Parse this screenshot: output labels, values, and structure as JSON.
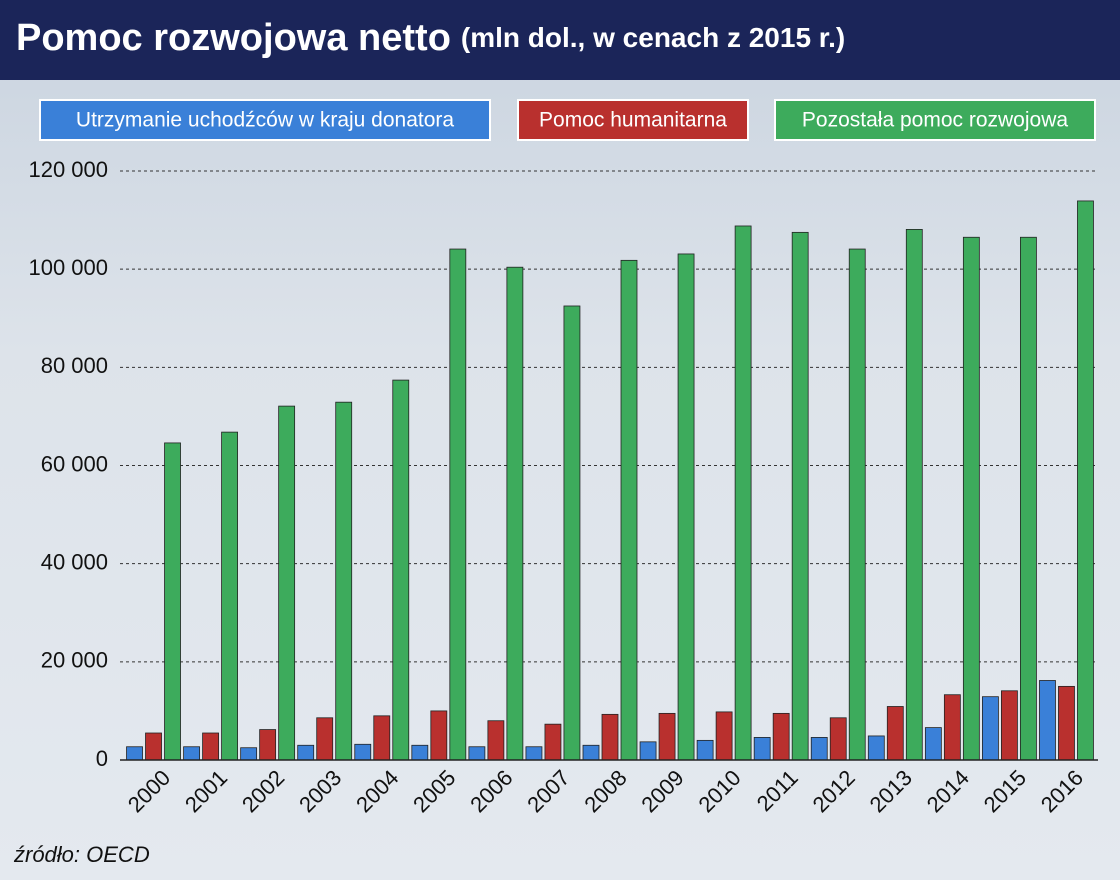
{
  "chart_data": {
    "type": "bar",
    "title": "Pomoc rozwojowa netto",
    "subtitle": "(mln dol., w cenach z 2015 r.)",
    "source": "źródło: OECD",
    "categories": [
      "2000",
      "2001",
      "2002",
      "2003",
      "2004",
      "2005",
      "2006",
      "2007",
      "2008",
      "2009",
      "2010",
      "2011",
      "2012",
      "2013",
      "2014",
      "2015",
      "2016"
    ],
    "series": [
      {
        "name": "Utrzymanie uchodźców w kraju donatora",
        "color": "#3a80d8",
        "values": [
          2700,
          2700,
          2500,
          3000,
          3200,
          3000,
          2700,
          2700,
          3000,
          3700,
          4000,
          4600,
          4600,
          4900,
          6600,
          12900,
          16200
        ]
      },
      {
        "name": "Pomoc humanitarna",
        "color": "#b9302e",
        "values": [
          5500,
          5500,
          6200,
          8600,
          9000,
          10000,
          8000,
          7300,
          9300,
          9500,
          9800,
          9500,
          8600,
          10900,
          13300,
          14100,
          15000
        ]
      },
      {
        "name": "Pozostała pomoc rozwojowa",
        "color": "#3dab5c",
        "values": [
          64600,
          66800,
          72100,
          72900,
          77400,
          104100,
          100400,
          92500,
          101800,
          103100,
          108800,
          107500,
          104100,
          108100,
          106500,
          106500,
          113900
        ]
      }
    ],
    "ylim": [
      0,
      120000
    ],
    "yticks": [
      0,
      {
        "value": 20000,
        "label": "20 000"
      },
      {
        "value": 40000,
        "label": "40 000"
      },
      {
        "value": 60000,
        "label": "60 000"
      },
      {
        "value": 80000,
        "label": "80 000"
      },
      {
        "value": 100000,
        "label": "100 000"
      },
      {
        "value": 120000,
        "label": "120 000"
      }
    ],
    "grid": true,
    "legend": "top"
  }
}
